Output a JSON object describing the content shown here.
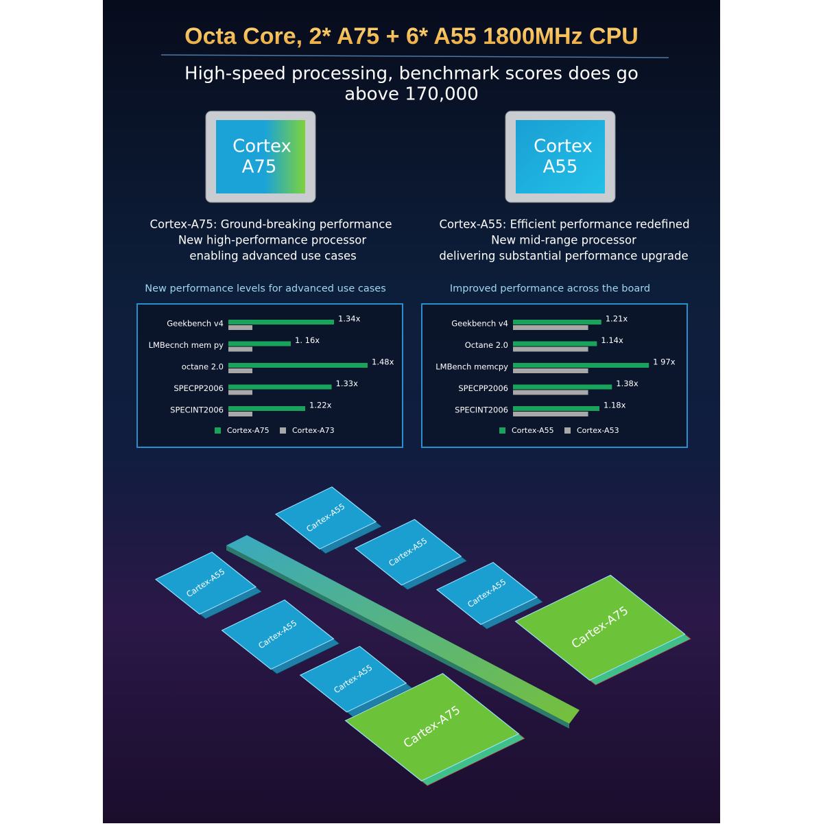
{
  "header": {
    "title": "Octa Core, 2* A75 + 6* A55 1800MHz CPU",
    "subtitle": [
      "High-speed processing, benchmark scores does go",
      "above 170,000"
    ]
  },
  "chips": [
    {
      "label": [
        "Cortex",
        "A75"
      ],
      "description": [
        "Cortex-A75: Ground-breaking performance",
        "New high-performance processor",
        "enabling advanced use cases"
      ]
    },
    {
      "label": [
        "Cortex",
        "A55"
      ],
      "description": [
        "Cortex-A55: Efficient performance redefined",
        "New mid-range processor",
        "delivering substantial performance upgrade"
      ]
    }
  ],
  "chart_data": [
    {
      "type": "bar",
      "orientation": "horizontal",
      "title": "New performance levels for advanced use cases",
      "categories": [
        "Geekbench v4",
        "LMBecnch mem py",
        "octane 2.0",
        "SPECPP2006",
        "SPECINT2006"
      ],
      "xlim": [
        0.9,
        1.5
      ],
      "series": [
        {
          "name": "Cortex-A75",
          "color": "#1aa35a",
          "values": [
            1.34,
            1.16,
            1.48,
            1.33,
            1.22
          ],
          "value_labels": [
            "1.34x",
            "1. 16x",
            "1.48x",
            "1.33x",
            "1.22x"
          ]
        },
        {
          "name": "Cortex-A73",
          "color": "#a8a8a8",
          "values": [
            1,
            1,
            1,
            1,
            1
          ]
        }
      ]
    },
    {
      "type": "bar",
      "orientation": "horizontal",
      "title": "Improved performance across the board",
      "categories": [
        "Geekbench v4",
        "Octane 2.0",
        "LMBench memcpy",
        "SPECPP2006",
        "SPECINT2006"
      ],
      "xlim": [
        -0.2,
        2.1
      ],
      "series": [
        {
          "name": "Cortex-A55",
          "color": "#1aa35a",
          "values": [
            1.21,
            1.14,
            1.97,
            1.38,
            1.18
          ],
          "value_labels": [
            "1.21x",
            "1.14x",
            "1 97x",
            "1.38x",
            "1.18x"
          ]
        },
        {
          "name": "Cortex-A53",
          "color": "#a8a8a8",
          "values": [
            1,
            1,
            1,
            1,
            1
          ]
        }
      ]
    }
  ],
  "diagram": {
    "chips": [
      "Cartex-A55",
      "Cartex-A55",
      "Cartex-A55",
      "Cartex-A55",
      "Cartex-A55",
      "Cartex-A55",
      "Cartex-A75",
      "Cartex-A75"
    ]
  }
}
